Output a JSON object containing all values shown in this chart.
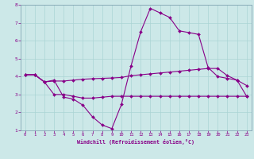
{
  "xlabel": "Windchill (Refroidissement éolien,°C)",
  "background_color": "#cce8e8",
  "grid_color": "#aad4d4",
  "line_color": "#880088",
  "xlim": [
    -0.5,
    23.5
  ],
  "ylim": [
    1,
    8
  ],
  "xticks": [
    0,
    1,
    2,
    3,
    4,
    5,
    6,
    7,
    8,
    9,
    10,
    11,
    12,
    13,
    14,
    15,
    16,
    17,
    18,
    19,
    20,
    21,
    22,
    23
  ],
  "yticks": [
    1,
    2,
    3,
    4,
    5,
    6,
    7,
    8
  ],
  "line1_x": [
    0,
    1,
    2,
    3,
    4,
    5,
    6,
    7,
    8,
    9,
    10,
    11,
    12,
    13,
    14,
    15,
    16,
    17,
    18,
    19,
    20,
    21,
    22,
    23
  ],
  "line1_y": [
    4.1,
    4.1,
    3.7,
    3.8,
    2.85,
    2.75,
    2.4,
    1.75,
    1.3,
    1.1,
    2.45,
    4.6,
    6.5,
    7.8,
    7.55,
    7.3,
    6.55,
    6.45,
    6.35,
    4.5,
    4.0,
    3.9,
    3.8,
    2.9
  ],
  "line2_x": [
    0,
    1,
    2,
    3,
    4,
    5,
    6,
    7,
    8,
    9,
    10,
    11,
    12,
    13,
    14,
    15,
    16,
    17,
    18,
    19,
    20,
    21,
    22,
    23
  ],
  "line2_y": [
    4.1,
    4.1,
    3.7,
    3.75,
    3.75,
    3.8,
    3.85,
    3.88,
    3.9,
    3.92,
    3.95,
    4.05,
    4.1,
    4.15,
    4.2,
    4.25,
    4.3,
    4.35,
    4.4,
    4.45,
    4.45,
    4.05,
    3.8,
    3.5
  ],
  "line3_x": [
    0,
    1,
    2,
    3,
    4,
    5,
    6,
    7,
    8,
    9,
    10,
    11,
    12,
    13,
    14,
    15,
    16,
    17,
    18,
    19,
    20,
    21,
    22,
    23
  ],
  "line3_y": [
    4.1,
    4.1,
    3.7,
    3.0,
    3.0,
    2.9,
    2.8,
    2.8,
    2.85,
    2.9,
    2.9,
    2.9,
    2.9,
    2.9,
    2.9,
    2.9,
    2.9,
    2.9,
    2.9,
    2.9,
    2.9,
    2.9,
    2.9,
    2.9
  ]
}
